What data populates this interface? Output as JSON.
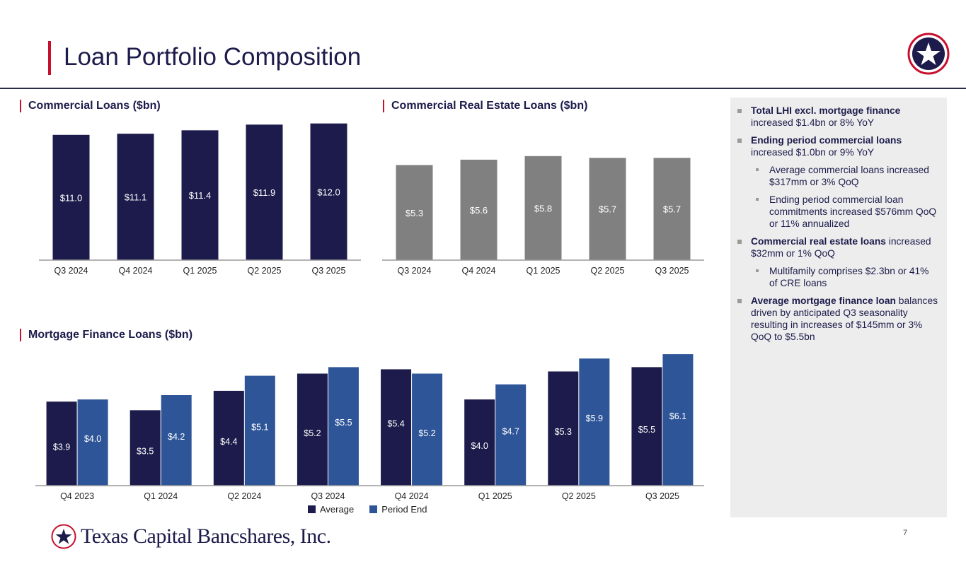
{
  "header": {
    "title": "Loan Portfolio Composition"
  },
  "colors": {
    "navy": "#1c1b4b",
    "gray": "#808080",
    "blue": "#2e5597",
    "accent": "#c8102e",
    "panel": "#ededed"
  },
  "chart_data": [
    {
      "type": "bar",
      "title": "Commercial Loans ($bn)",
      "categories": [
        "Q3 2024",
        "Q4 2024",
        "Q1 2025",
        "Q2 2025",
        "Q3 2025"
      ],
      "values": [
        11.0,
        11.1,
        11.4,
        11.9,
        12.0
      ],
      "labels": [
        "$11.0",
        "$11.1",
        "$11.4",
        "$11.9",
        "$12.0"
      ],
      "color": "#1c1b4b",
      "ylim": [
        0,
        12.6
      ]
    },
    {
      "type": "bar",
      "title": "Commercial Real Estate Loans ($bn)",
      "categories": [
        "Q3 2024",
        "Q4 2024",
        "Q1 2025",
        "Q2 2025",
        "Q3 2025"
      ],
      "values": [
        5.3,
        5.6,
        5.8,
        5.7,
        5.7
      ],
      "labels": [
        "$5.3",
        "$5.6",
        "$5.8",
        "$5.7",
        "$5.7"
      ],
      "color": "#808080",
      "ylim": [
        0,
        8.0
      ]
    },
    {
      "type": "bar",
      "title": "Mortgage Finance Loans ($bn)",
      "categories": [
        "Q4 2023",
        "Q1 2024",
        "Q2 2024",
        "Q3 2024",
        "Q4 2024",
        "Q1 2025",
        "Q2 2025",
        "Q3 2025"
      ],
      "series": [
        {
          "name": "Average",
          "color": "#1c1b4b",
          "values": [
            3.9,
            3.5,
            4.4,
            5.2,
            5.4,
            4.0,
            5.3,
            5.5
          ],
          "labels": [
            "$3.9",
            "$3.5",
            "$4.4",
            "$5.2",
            "$5.4",
            "$4.0",
            "$5.3",
            "$5.5"
          ]
        },
        {
          "name": "Period End",
          "color": "#2e5597",
          "values": [
            4.0,
            4.2,
            5.1,
            5.5,
            5.2,
            4.7,
            5.9,
            6.1
          ],
          "labels": [
            "$4.0",
            "$4.2",
            "$5.1",
            "$5.5",
            "$5.2",
            "$4.7",
            "$5.9",
            "$6.1"
          ]
        }
      ],
      "ylim": [
        0,
        6.3
      ],
      "legend": "bottom-center"
    }
  ],
  "sidebar": {
    "bullets": [
      {
        "level": 1,
        "bold": "Total LHI excl. mortgage finance",
        "text": " increased $1.4bn or 8% YoY"
      },
      {
        "level": 1,
        "bold": "Ending period commercial loans",
        "text": " increased $1.0bn or 9% YoY"
      },
      {
        "level": 2,
        "bold": "",
        "text": "Average commercial loans increased $317mm or 3% QoQ"
      },
      {
        "level": 2,
        "bold": "",
        "text": "Ending period commercial loan commitments increased $576mm QoQ or 11% annualized"
      },
      {
        "level": 1,
        "bold": "Commercial real estate loans",
        "text": " increased $32mm or 1% QoQ"
      },
      {
        "level": 2,
        "bold": "",
        "text": "Multifamily comprises $2.3bn or 41% of CRE loans"
      },
      {
        "level": 1,
        "bold": "Average mortgage finance loan",
        "text": " balances driven by anticipated Q3 seasonality resulting in increases of $145mm or 3% QoQ to $5.5bn"
      }
    ]
  },
  "footer": {
    "company": "Texas Capital Bancshares, Inc.",
    "page_number": "7"
  }
}
